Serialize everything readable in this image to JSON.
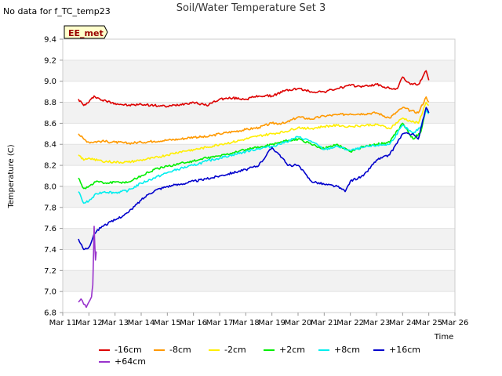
{
  "no_data_note": "No data for f_TC_temp23",
  "site_badge": "EE_met",
  "chart_data": {
    "type": "line",
    "title": "Soil/Water Temperature Set 3",
    "xlabel": "Time",
    "ylabel": "Temperature (C)",
    "xlim": [
      11,
      26
    ],
    "ylim": [
      6.8,
      9.4
    ],
    "x_ticks": [
      "Mar 11",
      "Mar 12",
      "Mar 13",
      "Mar 14",
      "Mar 15",
      "Mar 16",
      "Mar 17",
      "Mar 18",
      "Mar 19",
      "Mar 20",
      "Mar 21",
      "Mar 22",
      "Mar 23",
      "Mar 24",
      "Mar 25",
      "Mar 26"
    ],
    "y_ticks": [
      "6.8",
      "7.0",
      "7.2",
      "7.4",
      "7.6",
      "7.8",
      "8.0",
      "8.2",
      "8.4",
      "8.6",
      "8.8",
      "9.0",
      "9.2",
      "9.4"
    ],
    "grid": "alternating horizontal bands",
    "series": [
      {
        "name": "-16cm",
        "color": "#dd0000",
        "x": [
          11.6,
          11.8,
          12.0,
          12.2,
          12.5,
          13.0,
          13.5,
          14.0,
          14.5,
          15.0,
          15.5,
          16.0,
          16.5,
          17.0,
          17.5,
          18.0,
          18.5,
          19.0,
          19.5,
          20.0,
          20.5,
          21.0,
          21.5,
          22.0,
          22.5,
          23.0,
          23.5,
          23.8,
          24.0,
          24.3,
          24.6,
          24.9,
          25.0
        ],
        "y": [
          8.83,
          8.77,
          8.8,
          8.86,
          8.82,
          8.79,
          8.77,
          8.78,
          8.77,
          8.76,
          8.78,
          8.8,
          8.77,
          8.83,
          8.84,
          8.83,
          8.86,
          8.86,
          8.91,
          8.93,
          8.9,
          8.9,
          8.93,
          8.96,
          8.95,
          8.97,
          8.93,
          8.93,
          9.04,
          8.97,
          8.97,
          9.1,
          9.01
        ]
      },
      {
        "name": "-8cm",
        "color": "#ff9900",
        "x": [
          11.6,
          11.8,
          12.0,
          12.5,
          13.0,
          13.5,
          14.0,
          14.5,
          15.0,
          15.5,
          16.0,
          16.5,
          17.0,
          17.5,
          18.0,
          18.5,
          19.0,
          19.5,
          20.0,
          20.5,
          21.0,
          21.5,
          22.0,
          22.5,
          23.0,
          23.5,
          24.0,
          24.3,
          24.6,
          24.9,
          25.0
        ],
        "y": [
          8.5,
          8.45,
          8.42,
          8.43,
          8.42,
          8.41,
          8.42,
          8.43,
          8.44,
          8.45,
          8.47,
          8.47,
          8.5,
          8.52,
          8.54,
          8.56,
          8.6,
          8.6,
          8.66,
          8.64,
          8.67,
          8.68,
          8.69,
          8.69,
          8.7,
          8.65,
          8.75,
          8.72,
          8.7,
          8.85,
          8.8
        ]
      },
      {
        "name": "-2cm",
        "color": "#ffee00",
        "x": [
          11.6,
          11.8,
          12.0,
          12.5,
          13.0,
          13.5,
          14.0,
          14.5,
          15.0,
          15.5,
          16.0,
          16.5,
          17.0,
          17.5,
          18.0,
          18.5,
          19.0,
          19.5,
          20.0,
          20.5,
          21.0,
          21.5,
          22.0,
          22.5,
          23.0,
          23.5,
          24.0,
          24.3,
          24.6,
          24.9,
          25.0
        ],
        "y": [
          8.3,
          8.25,
          8.27,
          8.24,
          8.23,
          8.23,
          8.25,
          8.27,
          8.3,
          8.33,
          8.35,
          8.37,
          8.4,
          8.42,
          8.45,
          8.48,
          8.5,
          8.52,
          8.56,
          8.55,
          8.57,
          8.58,
          8.57,
          8.58,
          8.59,
          8.55,
          8.65,
          8.62,
          8.6,
          8.8,
          8.77
        ]
      },
      {
        "name": "+2cm",
        "color": "#00ee00",
        "x": [
          11.6,
          11.8,
          12.0,
          12.3,
          12.6,
          13.0,
          13.5,
          14.0,
          14.5,
          15.0,
          15.5,
          16.0,
          16.5,
          17.0,
          17.5,
          18.0,
          18.5,
          19.0,
          19.5,
          20.0,
          20.5,
          21.0,
          21.5,
          22.0,
          22.5,
          23.0,
          23.5,
          24.0,
          24.4,
          24.7,
          24.9,
          25.0
        ],
        "y": [
          8.08,
          7.98,
          8.0,
          8.05,
          8.03,
          8.04,
          8.04,
          8.1,
          8.16,
          8.19,
          8.22,
          8.24,
          8.27,
          8.29,
          8.32,
          8.35,
          8.37,
          8.4,
          8.43,
          8.45,
          8.4,
          8.36,
          8.4,
          8.33,
          8.38,
          8.4,
          8.42,
          8.6,
          8.45,
          8.52,
          8.75,
          8.7
        ]
      },
      {
        "name": "+8cm",
        "color": "#00eeee",
        "x": [
          11.6,
          11.8,
          12.0,
          12.3,
          12.6,
          13.0,
          13.5,
          14.0,
          14.5,
          15.0,
          15.5,
          16.0,
          16.5,
          17.0,
          17.5,
          18.0,
          18.5,
          19.0,
          19.5,
          20.0,
          20.5,
          21.0,
          21.5,
          22.0,
          22.5,
          23.0,
          23.5,
          24.0,
          24.4,
          24.7,
          24.9,
          25.0
        ],
        "y": [
          7.95,
          7.84,
          7.86,
          7.93,
          7.95,
          7.94,
          7.96,
          8.03,
          8.08,
          8.13,
          8.17,
          8.2,
          8.24,
          8.27,
          8.3,
          8.33,
          8.36,
          8.38,
          8.42,
          8.47,
          8.43,
          8.35,
          8.38,
          8.34,
          8.37,
          8.39,
          8.4,
          8.58,
          8.5,
          8.57,
          8.73,
          8.69
        ]
      },
      {
        "name": "+16cm",
        "color": "#0000cc",
        "x": [
          11.6,
          11.8,
          12.0,
          12.2,
          12.5,
          13.0,
          13.5,
          14.0,
          14.3,
          14.6,
          15.0,
          15.5,
          16.0,
          16.5,
          17.0,
          17.5,
          18.0,
          18.5,
          19.0,
          19.3,
          19.6,
          20.0,
          20.5,
          21.0,
          21.5,
          21.8,
          22.0,
          22.5,
          23.0,
          23.5,
          24.0,
          24.4,
          24.6,
          24.9,
          25.0
        ],
        "y": [
          7.5,
          7.4,
          7.42,
          7.55,
          7.62,
          7.68,
          7.75,
          7.87,
          7.93,
          7.97,
          8.0,
          8.02,
          8.05,
          8.07,
          8.1,
          8.13,
          8.16,
          8.2,
          8.37,
          8.3,
          8.2,
          8.2,
          8.05,
          8.02,
          8.0,
          7.95,
          8.05,
          8.1,
          8.25,
          8.3,
          8.5,
          8.5,
          8.45,
          8.75,
          8.7
        ]
      },
      {
        "name": "+64cm",
        "color": "#9933cc",
        "x": [
          11.6,
          11.7,
          11.8,
          11.9,
          12.0,
          12.1,
          12.15,
          12.2,
          12.25,
          12.28
        ],
        "y": [
          6.9,
          6.93,
          6.88,
          6.85,
          6.9,
          6.95,
          7.06,
          7.62,
          7.3,
          7.38
        ]
      }
    ]
  }
}
